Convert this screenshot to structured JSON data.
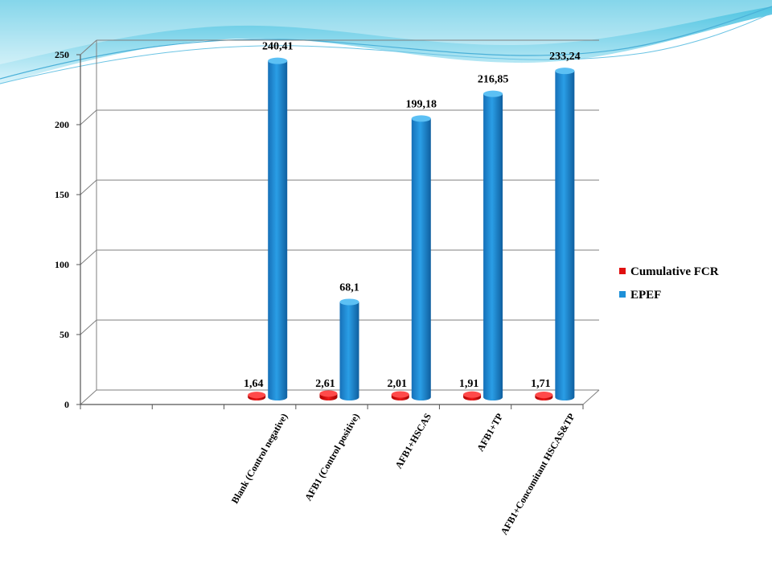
{
  "colors": {
    "fcr_front": "#e01010",
    "fcr_top": "#ff4a4a",
    "epef_front": "#1e90d8",
    "epef_top": "#5cc0f4",
    "grid": "#7f7f7f",
    "wave_dark": "#29b6d9",
    "wave_light": "#bdeaf5"
  },
  "chart_data": {
    "type": "bar",
    "title": "",
    "xlabel": "",
    "ylabel": "",
    "ylim": [
      0,
      250
    ],
    "yticks": [
      "0",
      "50",
      "100",
      "150",
      "200",
      "250"
    ],
    "grid": true,
    "legend_position": "right",
    "categories": [
      "",
      "",
      "Blank (Control negative)",
      "AFB1 (Control positive)",
      "AFB1+HSCAS",
      "AFB1+TP",
      "AFB1+Concomitant HSCAS&TP"
    ],
    "series": [
      {
        "name": "Cumulative FCR",
        "values": [
          null,
          null,
          1.64,
          2.61,
          2.01,
          1.91,
          1.71
        ],
        "labels": [
          "",
          "",
          "1,64",
          "2,61",
          "2,01",
          "1,91",
          "1,71"
        ]
      },
      {
        "name": "EPEF",
        "values": [
          null,
          null,
          240.41,
          68.1,
          199.18,
          216.85,
          233.24
        ],
        "labels": [
          "",
          "",
          "240,41",
          "68,1",
          "199,18",
          "216,85",
          "233,24"
        ]
      }
    ]
  }
}
